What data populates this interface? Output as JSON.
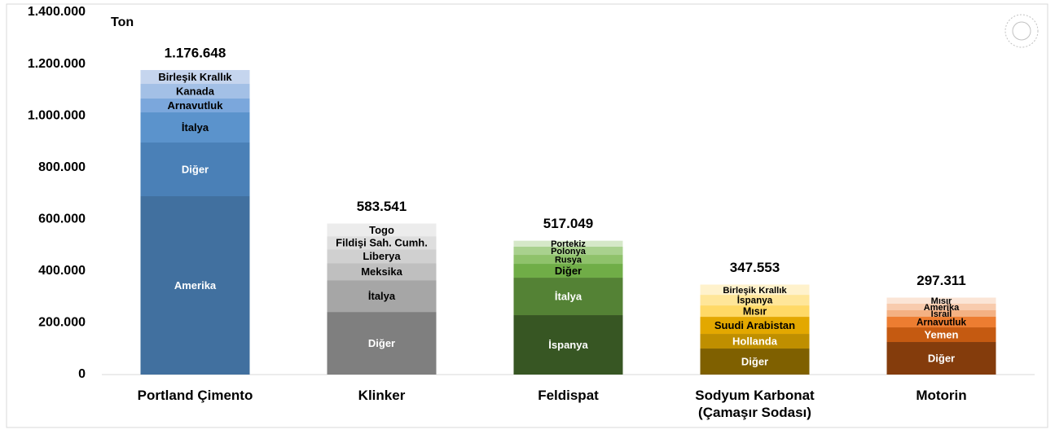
{
  "chart_data": {
    "type": "stacked_bar",
    "axis_label": "Ton",
    "categories": [
      "Portland Çimento",
      "Klinker",
      "Feldispat",
      "Sodyum Karbonat (Çamaşır Sodası)",
      "Motorin"
    ],
    "ylim": [
      0,
      1400000
    ],
    "yticks": [
      0,
      {
        "value": 200000,
        "label": "200.000"
      },
      {
        "value": 400000,
        "label": "400.000"
      },
      {
        "value": 600000,
        "label": "600.000"
      },
      {
        "value": 800000,
        "label": "800.000"
      },
      {
        "value": 1000000,
        "label": "1.000.000"
      },
      {
        "value": 1200000,
        "label": "1.200.000"
      },
      {
        "value": 1400000,
        "label": "1.400.000"
      }
    ],
    "stacks": [
      {
        "total": 1176648,
        "total_label": "1.176.648",
        "segments": [
          {
            "name": "Amerika",
            "color": "#41709f",
            "value": 689000
          },
          {
            "name": "Diğer",
            "color": "#4a80b7",
            "value": 207600
          },
          {
            "name": "İtalya",
            "color": "#5b93cc",
            "value": 116400
          },
          {
            "name": "Arnavutluk",
            "color": "#7ba7dc",
            "value": 53500
          },
          {
            "name": "Kanada",
            "color": "#a3c0e6",
            "value": 56600
          },
          {
            "name": "Birleşik Krallık",
            "color": "#c5d5ee",
            "value": 53548
          }
        ]
      },
      {
        "total": 583541,
        "total_label": "583.541",
        "segments": [
          {
            "name": "Diğer",
            "color": "#7f7f7f",
            "value": 242000
          },
          {
            "name": "İtalya",
            "color": "#a6a6a6",
            "value": 122600
          },
          {
            "name": "Meksika",
            "color": "#bfbfbf",
            "value": 66000
          },
          {
            "name": "Liberya",
            "color": "#d0d0d0",
            "value": 53500
          },
          {
            "name": "Fildişi Sah. Cumh.",
            "color": "#dedede",
            "value": 50300
          },
          {
            "name": "Togo",
            "color": "#ececec",
            "value": 49141
          }
        ]
      },
      {
        "total": 517049,
        "total_label": "517.049",
        "segments": [
          {
            "name": "İspanya",
            "color": "#375623",
            "value": 229600
          },
          {
            "name": "İtalya",
            "color": "#548235",
            "value": 144700
          },
          {
            "name": "Diğer",
            "color": "#70ad47",
            "value": 53500
          },
          {
            "name": "Rusya",
            "color": "#8fc26b",
            "value": 34600
          },
          {
            "name": "Polonya",
            "color": "#a9d18e",
            "value": 31500
          },
          {
            "name": "Portekiz",
            "color": "#d5e8c8",
            "value": 23149
          }
        ]
      },
      {
        "total": 347553,
        "total_label": "347.553",
        "segments": [
          {
            "name": "Diğer",
            "color": "#7f6000",
            "value": 100600
          },
          {
            "name": "Hollanda",
            "color": "#bf8f00",
            "value": 56600
          },
          {
            "name": "Suudi Arabistan",
            "color": "#e3a800",
            "value": 66000
          },
          {
            "name": "Mısır",
            "color": "#ffd966",
            "value": 44000
          },
          {
            "name": "İspanya",
            "color": "#ffe699",
            "value": 40900
          },
          {
            "name": "Birleşik Krallık",
            "color": "#fff2cc",
            "value": 39453
          }
        ]
      },
      {
        "total": 297311,
        "total_label": "297.311",
        "segments": [
          {
            "name": "Diğer",
            "color": "#843c0c",
            "value": 125800
          },
          {
            "name": "Yemen",
            "color": "#c55a11",
            "value": 56600
          },
          {
            "name": "Arnavutluk",
            "color": "#ed7d31",
            "value": 40900
          },
          {
            "name": "İsrail",
            "color": "#f4b183",
            "value": 25200
          },
          {
            "name": "Amerika",
            "color": "#f8cbad",
            "value": 25200
          },
          {
            "name": "Mısır",
            "color": "#fbe5d6",
            "value": 23611
          }
        ]
      }
    ]
  }
}
